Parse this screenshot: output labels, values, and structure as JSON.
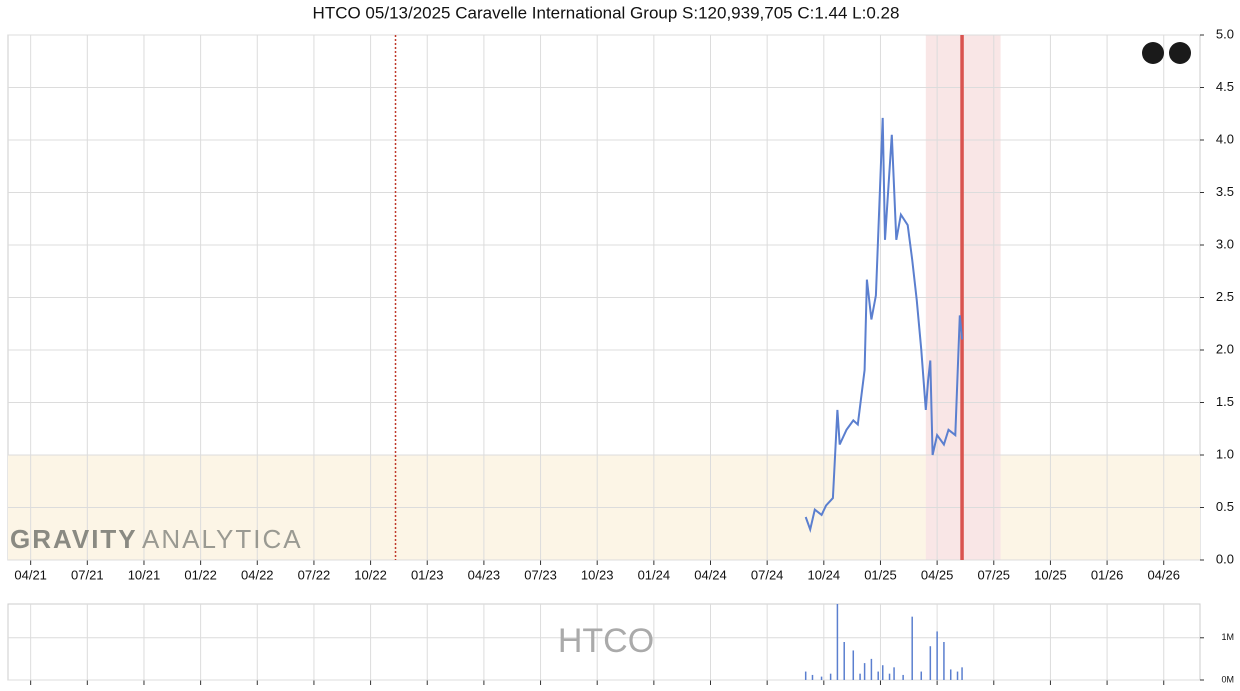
{
  "chart_data": [
    {
      "type": "line",
      "title": "HTCO 05/13/2025 Caravelle International Group S:120,939,705 C:1.44 L:0.28",
      "watermark": [
        "GRAVITY",
        "ANALYTICA"
      ],
      "color": "#5b7fcf",
      "x": [
        2024.67,
        2024.69,
        2024.71,
        2024.74,
        2024.76,
        2024.79,
        2024.81,
        2024.82,
        2024.85,
        2024.88,
        2024.9,
        2024.93,
        2024.94,
        2024.96,
        2024.98,
        2025.01,
        2025.02,
        2025.05,
        2025.07,
        2025.09,
        2025.12,
        2025.14,
        2025.16,
        2025.18,
        2025.2,
        2025.21,
        2025.22,
        2025.23,
        2025.25,
        2025.28,
        2025.3,
        2025.33,
        2025.35,
        2025.36
      ],
      "values": [
        0.41,
        0.29,
        0.48,
        0.43,
        0.52,
        0.59,
        1.43,
        1.1,
        1.24,
        1.33,
        1.29,
        1.81,
        2.67,
        2.29,
        2.52,
        4.21,
        3.05,
        4.05,
        3.05,
        3.29,
        3.19,
        2.86,
        2.48,
        2.0,
        1.43,
        1.71,
        1.9,
        1.0,
        1.19,
        1.1,
        1.24,
        1.19,
        2.33,
        2.1
      ],
      "xlim": [
        2021.15,
        2026.41
      ],
      "xticks": [
        {
          "value": 2021.25,
          "label": "04/21"
        },
        {
          "value": 2021.5,
          "label": "07/21"
        },
        {
          "value": 2021.75,
          "label": "10/21"
        },
        {
          "value": 2022.0,
          "label": "01/22"
        },
        {
          "value": 2022.25,
          "label": "04/22"
        },
        {
          "value": 2022.5,
          "label": "07/22"
        },
        {
          "value": 2022.75,
          "label": "10/22"
        },
        {
          "value": 2023.0,
          "label": "01/23"
        },
        {
          "value": 2023.25,
          "label": "04/23"
        },
        {
          "value": 2023.5,
          "label": "07/23"
        },
        {
          "value": 2023.75,
          "label": "10/23"
        },
        {
          "value": 2024.0,
          "label": "01/24"
        },
        {
          "value": 2024.25,
          "label": "04/24"
        },
        {
          "value": 2024.5,
          "label": "07/24"
        },
        {
          "value": 2024.75,
          "label": "10/24"
        },
        {
          "value": 2025.0,
          "label": "01/25"
        },
        {
          "value": 2025.25,
          "label": "04/25"
        },
        {
          "value": 2025.5,
          "label": "07/25"
        },
        {
          "value": 2025.75,
          "label": "10/25"
        },
        {
          "value": 2026.0,
          "label": "01/26"
        },
        {
          "value": 2026.25,
          "label": "04/26"
        }
      ],
      "ylim": [
        0,
        5
      ],
      "yticks": [
        {
          "value": 0,
          "label": "0.0"
        },
        0.5,
        {
          "value": 1,
          "label": "1.0"
        },
        1.5,
        {
          "value": 2,
          "label": "2.0"
        },
        2.5,
        {
          "value": 3,
          "label": "3.0"
        },
        3.5,
        {
          "value": 4,
          "label": "4.0"
        },
        4.5,
        {
          "value": 5,
          "label": "5.0"
        }
      ],
      "grid": true,
      "ybands": [
        {
          "range": [
            0,
            1.0
          ],
          "color": "#fcf5e6"
        }
      ],
      "xbands": [
        {
          "range": [
            2025.2,
            2025.53
          ],
          "color": "#f9e6e6"
        }
      ],
      "vlines": [
        {
          "x": 2022.86,
          "color": "#c0392b",
          "style": "dotted"
        },
        {
          "x": 2025.36,
          "color": "#d9534f",
          "style": "solid"
        }
      ]
    },
    {
      "type": "bar",
      "watermark": "HTCO",
      "color": "#5b7fcf",
      "x": [
        2024.67,
        2024.7,
        2024.74,
        2024.78,
        2024.81,
        2024.84,
        2024.88,
        2024.91,
        2024.93,
        2024.96,
        2024.99,
        2025.01,
        2025.04,
        2025.06,
        2025.1,
        2025.14,
        2025.18,
        2025.22,
        2025.25,
        2025.28,
        2025.31,
        2025.34,
        2025.36
      ],
      "values": [
        200000,
        120000,
        80000,
        150000,
        1800000,
        900000,
        700000,
        150000,
        400000,
        500000,
        200000,
        350000,
        150000,
        300000,
        120000,
        1500000,
        200000,
        800000,
        1150000,
        900000,
        250000,
        200000,
        300000
      ],
      "xlim": [
        2021.15,
        2026.41
      ],
      "ylim": [
        0,
        1800000
      ],
      "yticks": [
        {
          "value": 0,
          "label": "0M"
        },
        {
          "value": 1000000,
          "label": "1M"
        }
      ]
    }
  ]
}
